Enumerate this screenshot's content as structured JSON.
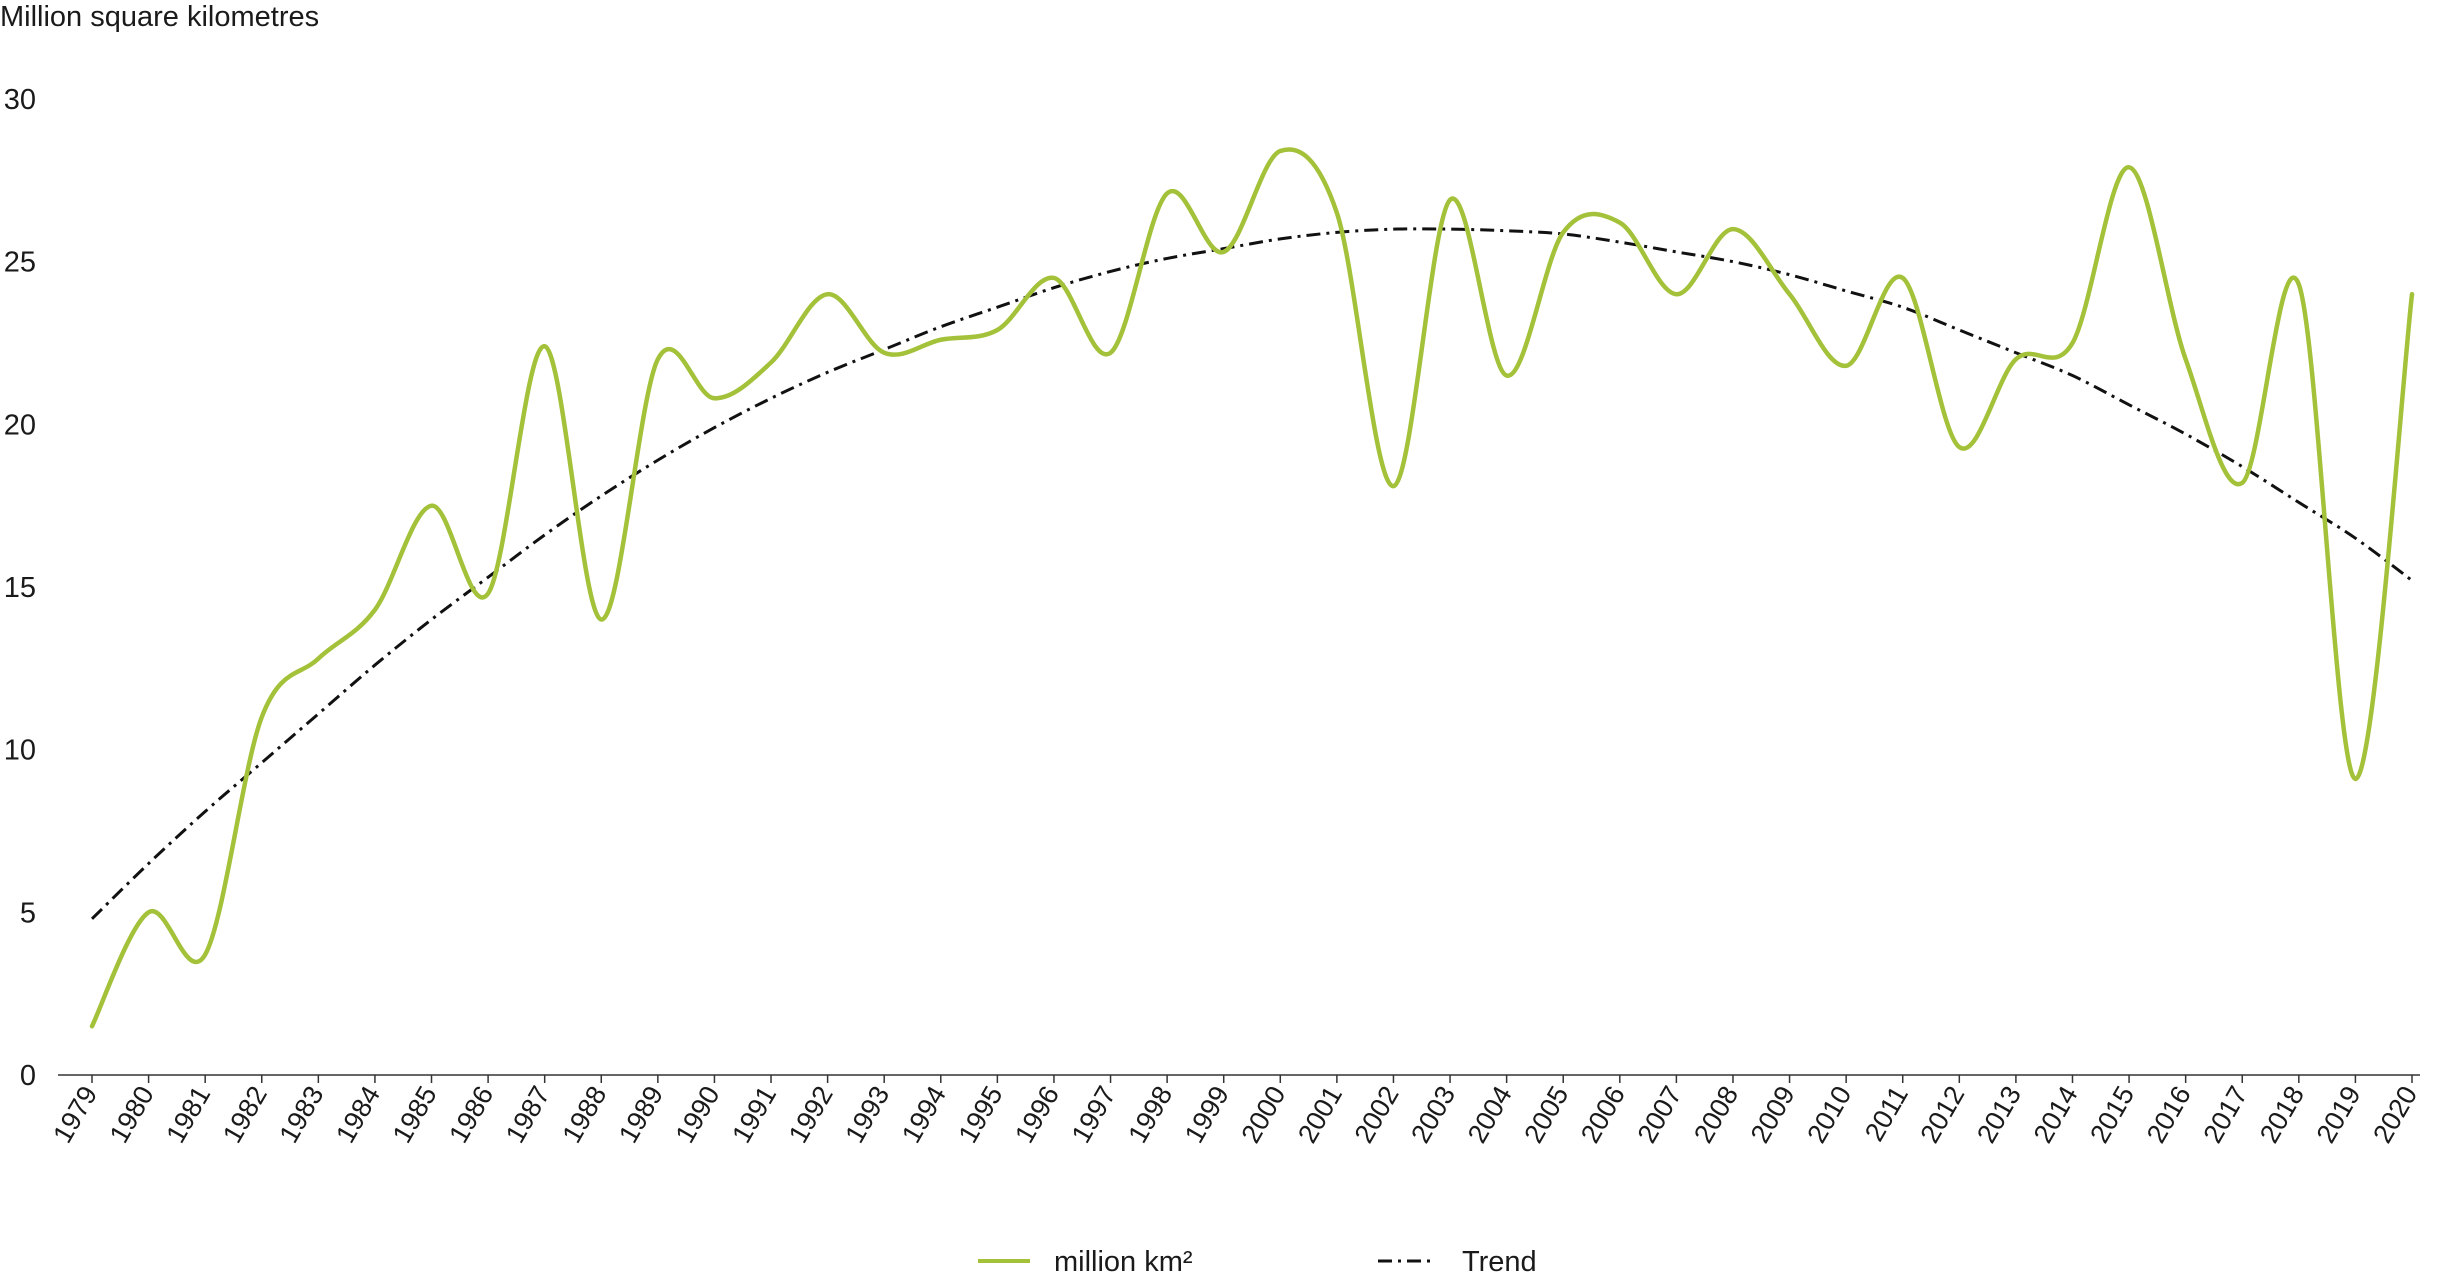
{
  "chart_data": {
    "type": "line",
    "ylabel": "Million square kilometres",
    "xlabel": "",
    "ylim": [
      0,
      30
    ],
    "yticks": [
      0,
      5,
      10,
      15,
      20,
      25,
      30
    ],
    "grid": false,
    "legend_position": "bottom-center",
    "categories": [
      "1979",
      "1980",
      "1981",
      "1982",
      "1983",
      "1984",
      "1985",
      "1986",
      "1987",
      "1988",
      "1989",
      "1990",
      "1991",
      "1992",
      "1993",
      "1994",
      "1995",
      "1996",
      "1997",
      "1998",
      "1999",
      "2000",
      "2001",
      "2002",
      "2003",
      "2004",
      "2005",
      "2006",
      "2007",
      "2008",
      "2009",
      "2010",
      "2011",
      "2012",
      "2013",
      "2014",
      "2015",
      "2016",
      "2017",
      "2018",
      "2019",
      "2020"
    ],
    "series": [
      {
        "name": "million km²",
        "color": "#a4c13a",
        "style": "solid",
        "values": [
          1.5,
          5.0,
          3.7,
          11.0,
          12.8,
          14.3,
          17.5,
          14.8,
          22.4,
          14.0,
          22.0,
          20.8,
          21.9,
          24.0,
          22.2,
          22.6,
          22.9,
          24.5,
          22.2,
          27.1,
          25.3,
          28.4,
          26.5,
          18.1,
          26.9,
          21.5,
          25.9,
          26.2,
          24.0,
          26.0,
          24.0,
          21.8,
          24.5,
          19.3,
          22.0,
          22.5,
          27.9,
          22.0,
          18.2,
          24.3,
          9.1,
          24.0
        ]
      },
      {
        "name": "Trend",
        "color": "#111111",
        "style": "dashdot",
        "values": [
          4.8,
          6.5,
          8.1,
          9.6,
          11.1,
          12.6,
          14.0,
          15.3,
          16.6,
          17.8,
          18.9,
          19.9,
          20.8,
          21.6,
          22.3,
          23.0,
          23.6,
          24.2,
          24.7,
          25.1,
          25.4,
          25.7,
          25.9,
          26.0,
          26.0,
          25.95,
          25.85,
          25.6,
          25.3,
          25.0,
          24.6,
          24.1,
          23.6,
          22.9,
          22.2,
          21.5,
          20.6,
          19.7,
          18.7,
          17.6,
          16.5,
          15.2
        ]
      }
    ]
  }
}
